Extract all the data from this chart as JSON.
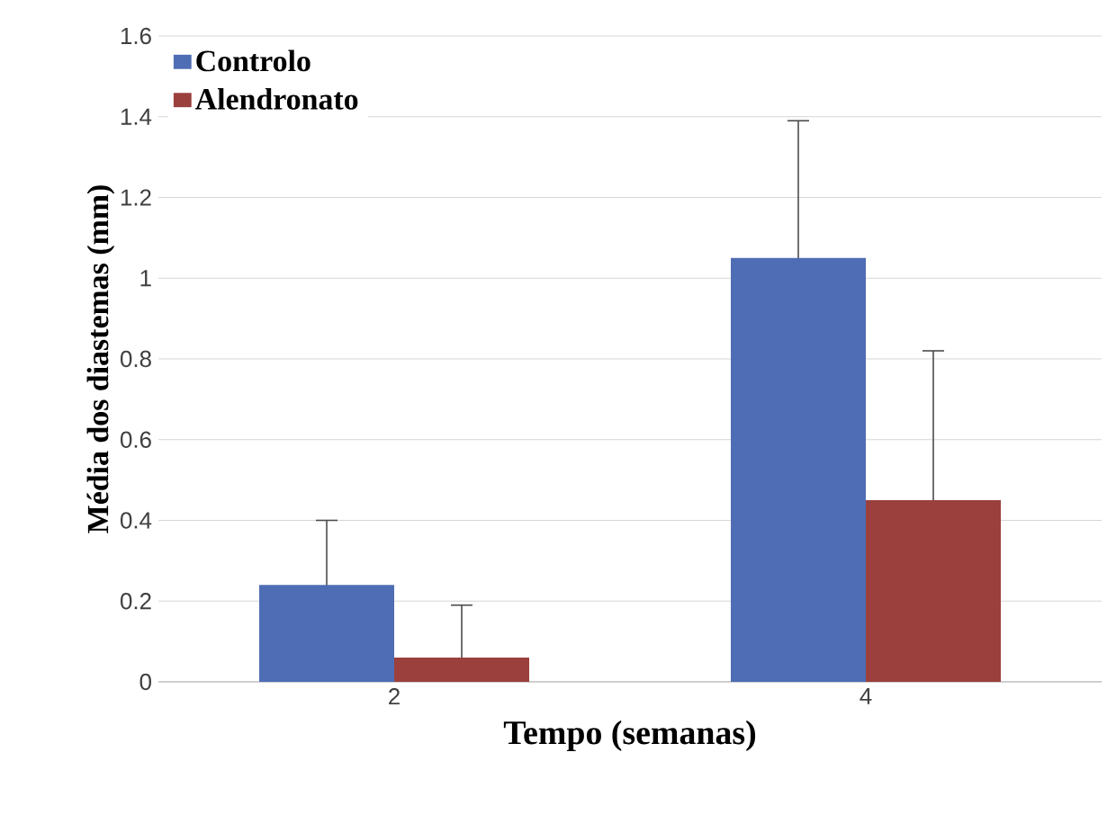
{
  "chart_data": {
    "type": "bar",
    "xlabel": "Tempo (semanas)",
    "ylabel": "Média dos diastemas (mm)",
    "categories": [
      "2",
      "4"
    ],
    "series": [
      {
        "name": "Controlo",
        "color": "#4f6db4",
        "values": [
          0.24,
          1.05
        ],
        "errors": [
          0.16,
          0.34
        ]
      },
      {
        "name": "Alendronato",
        "color": "#9b403d",
        "values": [
          0.06,
          0.45
        ],
        "errors": [
          0.13,
          0.37
        ]
      }
    ],
    "ylim": [
      0,
      1.6
    ],
    "yticks": [
      0,
      0.2,
      0.4,
      0.6,
      0.8,
      1,
      1.2,
      1.4,
      1.6
    ],
    "grid": "y",
    "legend": "top left"
  }
}
